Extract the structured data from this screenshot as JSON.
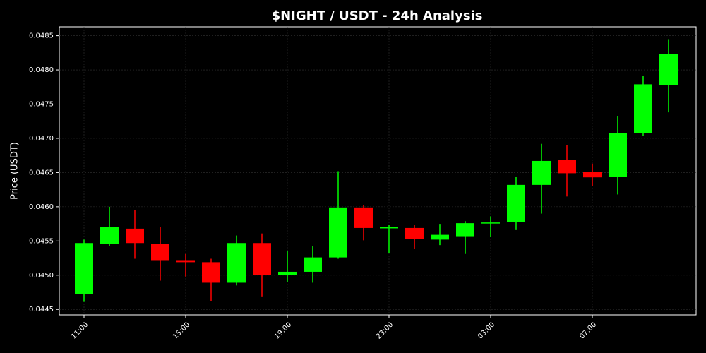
{
  "chart_data": {
    "type": "candlestick",
    "title": "$NIGHT / USDT - 24h Analysis",
    "y_label": "Price (USDT)",
    "categories": [
      "11:00",
      null,
      null,
      null,
      "15:00",
      null,
      null,
      null,
      "19:00",
      null,
      null,
      null,
      "23:00",
      null,
      null,
      null,
      "03:00",
      null,
      null,
      null,
      "07:00",
      null,
      null,
      null
    ],
    "open": [
      0.04472,
      0.04546,
      0.04568,
      0.04546,
      0.04522,
      0.04519,
      0.04489,
      0.04547,
      0.045,
      0.04505,
      0.04526,
      0.04599,
      0.04569,
      0.04569,
      0.04552,
      0.04557,
      0.04576,
      0.04578,
      0.04632,
      0.04668,
      0.04651,
      0.04644,
      0.04708,
      0.04778
    ],
    "high": [
      0.04552,
      0.046,
      0.04595,
      0.0457,
      0.04531,
      0.04524,
      0.04558,
      0.04561,
      0.04536,
      0.04543,
      0.04652,
      0.04603,
      0.04574,
      0.04573,
      0.04575,
      0.04579,
      0.04586,
      0.04644,
      0.04692,
      0.0469,
      0.04663,
      0.04733,
      0.04791,
      0.04845
    ],
    "low": [
      0.04461,
      0.04543,
      0.04524,
      0.04492,
      0.04498,
      0.04462,
      0.04485,
      0.04469,
      0.0449,
      0.04489,
      0.04524,
      0.04551,
      0.04532,
      0.04539,
      0.04544,
      0.04531,
      0.04556,
      0.04566,
      0.0459,
      0.04615,
      0.0463,
      0.04618,
      0.04704,
      0.04738
    ],
    "close": [
      0.04547,
      0.0457,
      0.04547,
      0.04522,
      0.04519,
      0.04489,
      0.04547,
      0.045,
      0.04505,
      0.04526,
      0.04599,
      0.04569,
      0.0457,
      0.04553,
      0.04559,
      0.04576,
      0.04577,
      0.04632,
      0.04667,
      0.04649,
      0.04643,
      0.04708,
      0.04779,
      0.04823
    ],
    "up_color": "#00ff00",
    "down_color": "#ff0000",
    "ylim": [
      0.04442,
      0.04863
    ],
    "yticks": [
      0.0445,
      {
        "value": 0.045,
        "label": "0.0450"
      },
      0.0455,
      {
        "value": 0.046,
        "label": "0.0460"
      },
      0.0465,
      {
        "value": 0.047,
        "label": "0.0470"
      },
      0.0475,
      {
        "value": 0.048,
        "label": "0.0480"
      },
      0.0485
    ],
    "grid": true
  }
}
